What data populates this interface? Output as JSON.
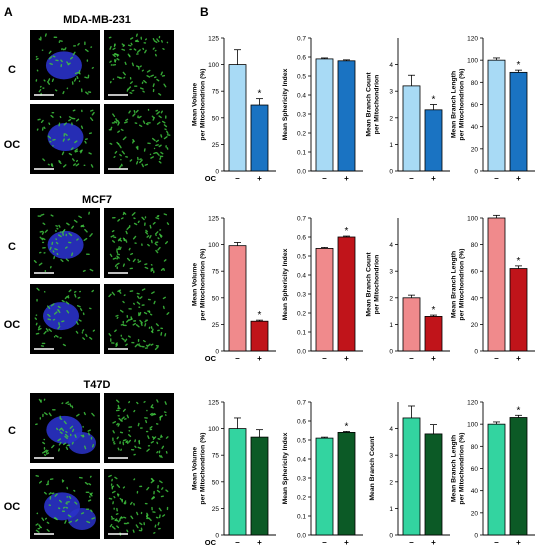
{
  "panel_labels": {
    "a": "A",
    "b": "B"
  },
  "cell_lines": [
    {
      "name": "MDA-MB-231",
      "rows": [
        "C",
        "OC"
      ]
    },
    {
      "name": "MCF7",
      "rows": [
        "C",
        "OC"
      ]
    },
    {
      "name": "T47D",
      "rows": [
        "C",
        "OC"
      ]
    }
  ],
  "treatment_label": "OC",
  "categories": [
    "–",
    "+"
  ],
  "colors": {
    "mda_control": "#a8daf5",
    "mda_treated": "#1a73c2",
    "mcf7_control": "#f08a8c",
    "mcf7_treated": "#c0141a",
    "t47d_control": "#33d4a0",
    "t47d_treated": "#0c5a26",
    "nucleus": "#2a32c8",
    "mitochondria": "#3fc43f"
  },
  "chart_data": [
    {
      "type": "bar",
      "ylabel": "Mean Volume per Mitochondrion (%)",
      "ylim": [
        0,
        125
      ],
      "ticks": [
        "0",
        "25",
        "50",
        "75",
        "100",
        "125"
      ],
      "categories": [
        "–",
        "+"
      ],
      "values": [
        100,
        62
      ],
      "errors": [
        14,
        6
      ],
      "significance": [
        "",
        "*"
      ],
      "colors": [
        "#a8daf5",
        "#1a73c2"
      ]
    },
    {
      "type": "bar",
      "ylabel": "Mean Sphericity Index",
      "ylim": [
        0,
        0.7
      ],
      "ticks": [
        "0.0",
        "0.1",
        "0.2",
        "0.3",
        "0.4",
        "0.5",
        "0.6",
        "0.7"
      ],
      "categories": [
        "–",
        "+"
      ],
      "values": [
        0.59,
        0.58
      ],
      "errors": [
        0.005,
        0.005
      ],
      "significance": [
        "",
        ""
      ],
      "colors": [
        "#a8daf5",
        "#1a73c2"
      ]
    },
    {
      "type": "bar",
      "ylabel": "Mean Branch Count per Mitochondrion",
      "ylim": [
        0,
        5
      ],
      "ticks": [
        "0",
        "1",
        "2",
        "3",
        "4"
      ],
      "categories": [
        "–",
        "+"
      ],
      "values": [
        3.2,
        2.3
      ],
      "errors": [
        0.4,
        0.2
      ],
      "significance": [
        "",
        "*"
      ],
      "colors": [
        "#a8daf5",
        "#1a73c2"
      ]
    },
    {
      "type": "bar",
      "ylabel": "Mean Branch Length per Mitochondrion (%)",
      "ylim": [
        0,
        120
      ],
      "ticks": [
        "0",
        "20",
        "40",
        "60",
        "80",
        "100",
        "120"
      ],
      "categories": [
        "–",
        "+"
      ],
      "values": [
        100,
        89
      ],
      "errors": [
        2,
        2
      ],
      "significance": [
        "",
        "*"
      ],
      "colors": [
        "#a8daf5",
        "#1a73c2"
      ]
    },
    {
      "type": "bar",
      "ylabel": "Mean Volume per Mitochondrion (%)",
      "ylim": [
        0,
        125
      ],
      "ticks": [
        "0",
        "25",
        "50",
        "75",
        "100",
        "125"
      ],
      "categories": [
        "–",
        "+"
      ],
      "values": [
        99,
        28
      ],
      "errors": [
        3,
        1
      ],
      "significance": [
        "",
        "*"
      ],
      "colors": [
        "#f08a8c",
        "#c0141a"
      ]
    },
    {
      "type": "bar",
      "ylabel": "Mean Sphericity Index",
      "ylim": [
        0,
        0.7
      ],
      "ticks": [
        "0.0",
        "0.1",
        "0.2",
        "0.3",
        "0.4",
        "0.5",
        "0.6",
        "0.7"
      ],
      "categories": [
        "–",
        "+"
      ],
      "values": [
        0.54,
        0.6
      ],
      "errors": [
        0.005,
        0.005
      ],
      "significance": [
        "",
        "*"
      ],
      "colors": [
        "#f08a8c",
        "#c0141a"
      ]
    },
    {
      "type": "bar",
      "ylabel": "Mean Branch Count per Mitochondrion",
      "ylim": [
        0,
        5
      ],
      "ticks": [
        "0",
        "1",
        "2",
        "3",
        "4"
      ],
      "categories": [
        "–",
        "+"
      ],
      "values": [
        2.0,
        1.3
      ],
      "errors": [
        0.1,
        0.05
      ],
      "significance": [
        "",
        "*"
      ],
      "colors": [
        "#f08a8c",
        "#c0141a"
      ]
    },
    {
      "type": "bar",
      "ylabel": "Mean Branch Length per Mitochondrion (%)",
      "ylim": [
        0,
        100
      ],
      "ticks": [
        "0",
        "20",
        "40",
        "60",
        "80",
        "100"
      ],
      "categories": [
        "–",
        "+"
      ],
      "values": [
        100,
        62
      ],
      "errors": [
        2,
        2
      ],
      "significance": [
        "",
        "*"
      ],
      "colors": [
        "#f08a8c",
        "#c0141a"
      ]
    },
    {
      "type": "bar",
      "ylabel": "Mean Volume per Mitochondrion (%)",
      "ylim": [
        0,
        125
      ],
      "ticks": [
        "0",
        "25",
        "50",
        "75",
        "100",
        "125"
      ],
      "categories": [
        "–",
        "+"
      ],
      "values": [
        100,
        92
      ],
      "errors": [
        10,
        7
      ],
      "significance": [
        "",
        ""
      ],
      "colors": [
        "#33d4a0",
        "#0c5a26"
      ]
    },
    {
      "type": "bar",
      "ylabel": "Mean Sphericity Index",
      "ylim": [
        0,
        0.7
      ],
      "ticks": [
        "0.0",
        "0.1",
        "0.2",
        "0.3",
        "0.4",
        "0.5",
        "0.6",
        "0.7"
      ],
      "categories": [
        "–",
        "+"
      ],
      "values": [
        0.51,
        0.54
      ],
      "errors": [
        0.005,
        0.005
      ],
      "significance": [
        "",
        "*"
      ],
      "colors": [
        "#33d4a0",
        "#0c5a26"
      ]
    },
    {
      "type": "bar",
      "ylabel": "Mean Branch Count",
      "ylim": [
        0,
        5
      ],
      "ticks": [
        "0",
        "1",
        "2",
        "3",
        "4"
      ],
      "categories": [
        "–",
        "+"
      ],
      "values": [
        4.4,
        3.8
      ],
      "errors": [
        0.45,
        0.35
      ],
      "significance": [
        "",
        ""
      ],
      "colors": [
        "#33d4a0",
        "#0c5a26"
      ]
    },
    {
      "type": "bar",
      "ylabel": "Mean Branch Length per Mitochondrion (%)",
      "ylim": [
        0,
        120
      ],
      "ticks": [
        "0",
        "20",
        "40",
        "60",
        "80",
        "100",
        "120"
      ],
      "categories": [
        "–",
        "+"
      ],
      "values": [
        100,
        106
      ],
      "errors": [
        2,
        2
      ],
      "significance": [
        "",
        "*"
      ],
      "colors": [
        "#33d4a0",
        "#0c5a26"
      ]
    }
  ]
}
